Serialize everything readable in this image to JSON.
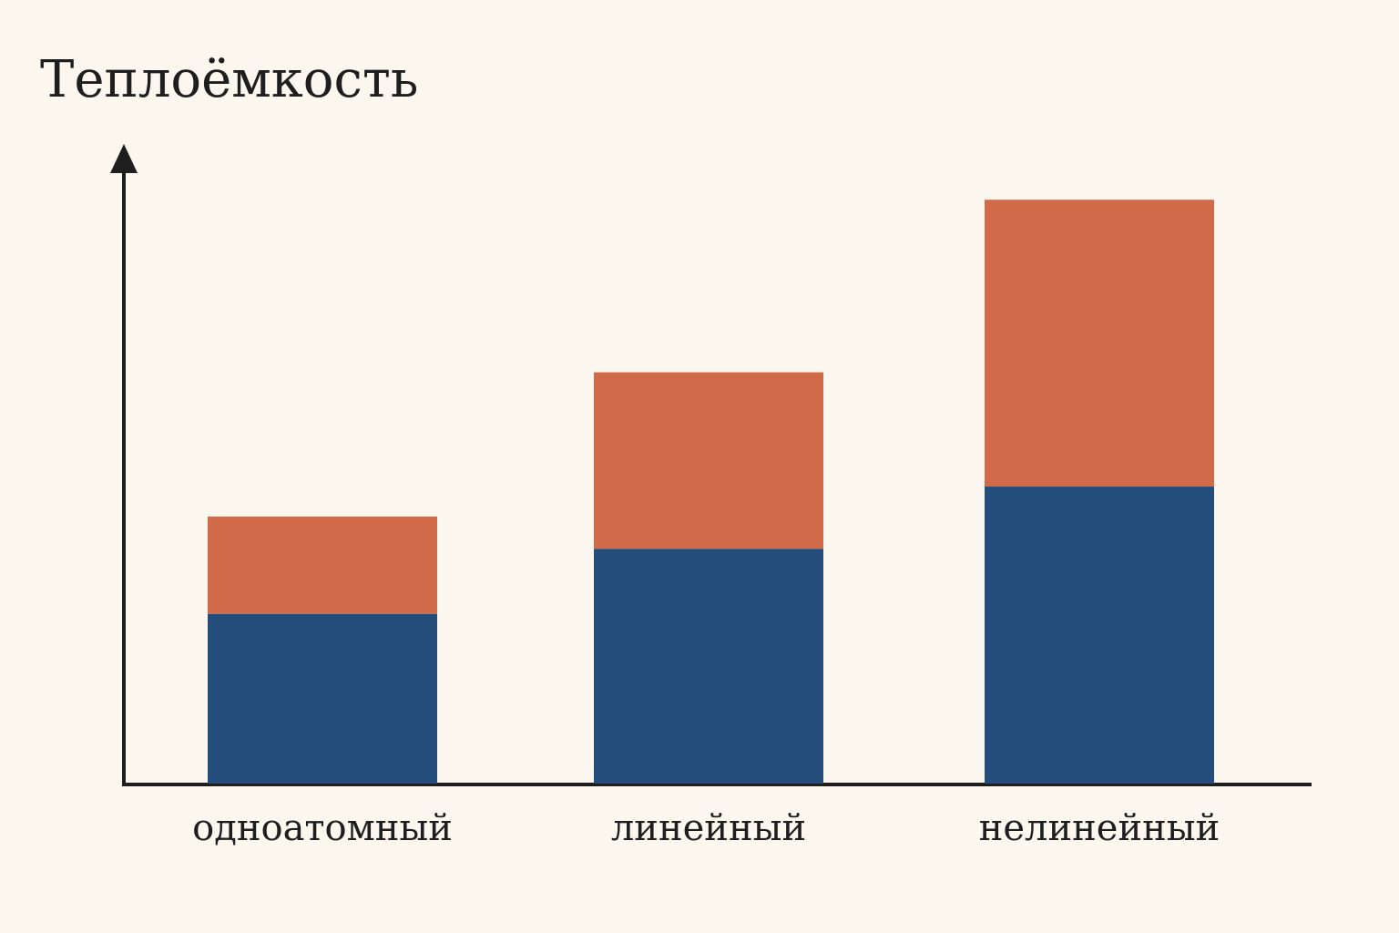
{
  "chart_data": {
    "type": "bar",
    "stacked": true,
    "ylabel": "Теплоёмкость",
    "categories": [
      "одноатомный",
      "линейный",
      "нелинейный"
    ],
    "series": [
      {
        "color": "#254d7b",
        "values": [
          3,
          4.15,
          5.25
        ]
      },
      {
        "color": "#d16a49",
        "values": [
          1.72,
          3.12,
          5.07
        ]
      }
    ],
    "ylim": [
      0,
      11
    ],
    "grid": false,
    "legend": "none"
  }
}
